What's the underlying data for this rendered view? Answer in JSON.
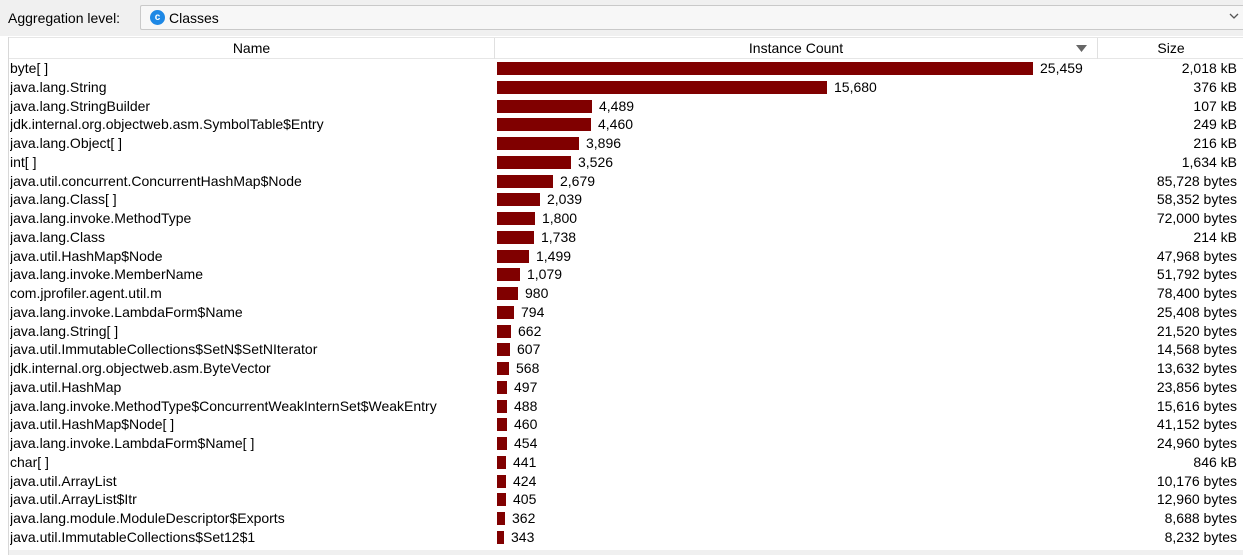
{
  "toolbar": {
    "aggregation_label": "Aggregation level:",
    "aggregation_value": "Classes",
    "aggregation_icon_letter": "c"
  },
  "table": {
    "columns": {
      "name": "Name",
      "count": "Instance Count",
      "size": "Size"
    },
    "max_count": 25459,
    "rows": [
      {
        "name": "byte[ ]",
        "count": 25459,
        "count_label": "25,459",
        "size": "2,018 kB"
      },
      {
        "name": "java.lang.String",
        "count": 15680,
        "count_label": "15,680",
        "size": "376 kB"
      },
      {
        "name": "java.lang.StringBuilder",
        "count": 4489,
        "count_label": "4,489",
        "size": "107 kB"
      },
      {
        "name": "jdk.internal.org.objectweb.asm.SymbolTable$Entry",
        "count": 4460,
        "count_label": "4,460",
        "size": "249 kB"
      },
      {
        "name": "java.lang.Object[ ]",
        "count": 3896,
        "count_label": "3,896",
        "size": "216 kB"
      },
      {
        "name": "int[ ]",
        "count": 3526,
        "count_label": "3,526",
        "size": "1,634 kB"
      },
      {
        "name": "java.util.concurrent.ConcurrentHashMap$Node",
        "count": 2679,
        "count_label": "2,679",
        "size": "85,728 bytes"
      },
      {
        "name": "java.lang.Class[ ]",
        "count": 2039,
        "count_label": "2,039",
        "size": "58,352 bytes"
      },
      {
        "name": "java.lang.invoke.MethodType",
        "count": 1800,
        "count_label": "1,800",
        "size": "72,000 bytes"
      },
      {
        "name": "java.lang.Class",
        "count": 1738,
        "count_label": "1,738",
        "size": "214 kB"
      },
      {
        "name": "java.util.HashMap$Node",
        "count": 1499,
        "count_label": "1,499",
        "size": "47,968 bytes"
      },
      {
        "name": "java.lang.invoke.MemberName",
        "count": 1079,
        "count_label": "1,079",
        "size": "51,792 bytes"
      },
      {
        "name": "com.jprofiler.agent.util.m",
        "count": 980,
        "count_label": "980",
        "size": "78,400 bytes"
      },
      {
        "name": "java.lang.invoke.LambdaForm$Name",
        "count": 794,
        "count_label": "794",
        "size": "25,408 bytes"
      },
      {
        "name": "java.lang.String[ ]",
        "count": 662,
        "count_label": "662",
        "size": "21,520 bytes"
      },
      {
        "name": "java.util.ImmutableCollections$SetN$SetNIterator",
        "count": 607,
        "count_label": "607",
        "size": "14,568 bytes"
      },
      {
        "name": "jdk.internal.org.objectweb.asm.ByteVector",
        "count": 568,
        "count_label": "568",
        "size": "13,632 bytes"
      },
      {
        "name": "java.util.HashMap",
        "count": 497,
        "count_label": "497",
        "size": "23,856 bytes"
      },
      {
        "name": "java.lang.invoke.MethodType$ConcurrentWeakInternSet$WeakEntry",
        "count": 488,
        "count_label": "488",
        "size": "15,616 bytes"
      },
      {
        "name": "java.util.HashMap$Node[ ]",
        "count": 460,
        "count_label": "460",
        "size": "41,152 bytes"
      },
      {
        "name": "java.lang.invoke.LambdaForm$Name[ ]",
        "count": 454,
        "count_label": "454",
        "size": "24,960 bytes"
      },
      {
        "name": "char[ ]",
        "count": 441,
        "count_label": "441",
        "size": "846 kB"
      },
      {
        "name": "java.util.ArrayList",
        "count": 424,
        "count_label": "424",
        "size": "10,176 bytes"
      },
      {
        "name": "java.util.ArrayList$Itr",
        "count": 405,
        "count_label": "405",
        "size": "12,960 bytes"
      },
      {
        "name": "java.lang.module.ModuleDescriptor$Exports",
        "count": 362,
        "count_label": "362",
        "size": "8,688 bytes"
      },
      {
        "name": "java.util.ImmutableCollections$Set12$1",
        "count": 343,
        "count_label": "343",
        "size": "8,232 bytes"
      }
    ]
  },
  "colors": {
    "bar": "#800000",
    "accent_icon": "#1e88e5"
  },
  "icons": {
    "aggregation": "class-icon",
    "dropdown": "chevron-down-icon",
    "sort": "sort-descending-icon"
  }
}
